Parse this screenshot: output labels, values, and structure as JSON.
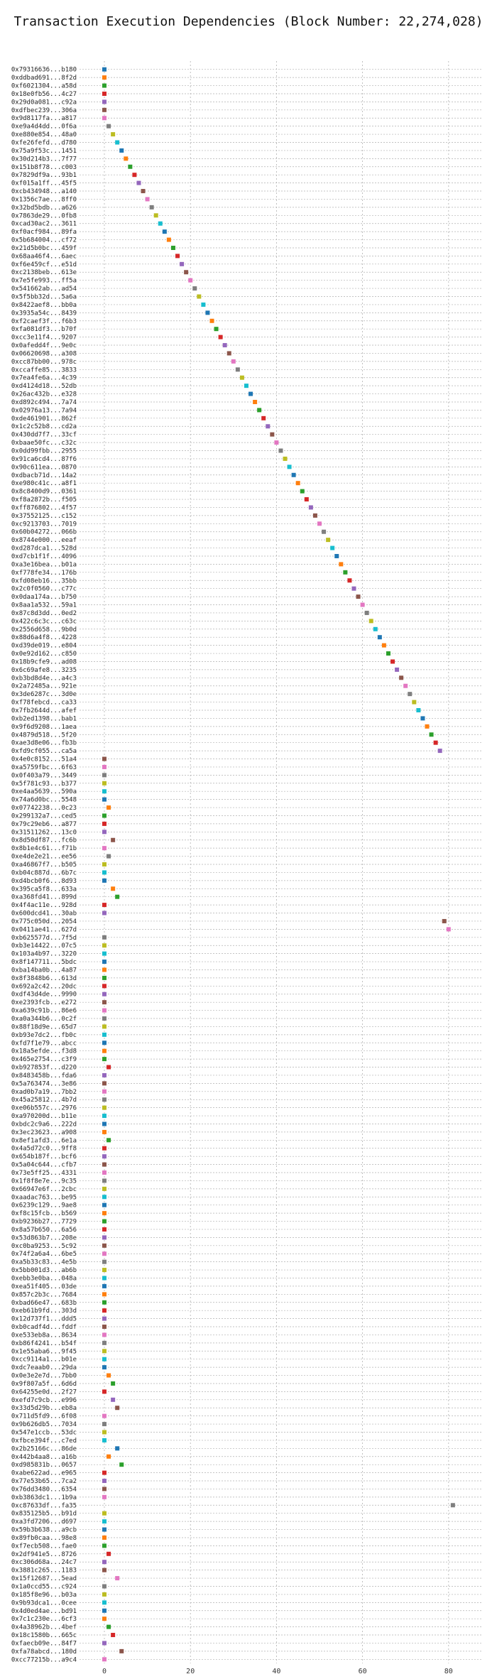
{
  "chart_data": {
    "type": "scatter",
    "title": "Transaction Execution Dependencies (Block Number: 22,274,028)",
    "xlabel": "",
    "ylabel": "",
    "xlim": [
      -3,
      86
    ],
    "xticks": [
      0,
      20,
      40,
      60,
      80
    ],
    "grid": true,
    "legend": "none",
    "colors": [
      "#1f77b4",
      "#ff7f0e",
      "#2ca02c",
      "#d62728",
      "#9467bd",
      "#8c564b",
      "#e377c2",
      "#7f7f7f",
      "#bcbd22",
      "#17becf"
    ],
    "categories": [
      "0x79316636...b180",
      "0xddbad691...8f2d",
      "0xf6021304...a58d",
      "0x18e0fb56...4c27",
      "0x29d0a081...c92a",
      "0xdfbec239...306a",
      "0x9d8117fa...a817",
      "0xe9a4d4dd...0f6a",
      "0xe880e854...48a0",
      "0xfe26fefd...d780",
      "0x75a9f53c...1451",
      "0x30d214b3...7f77",
      "0x151b8f78...c003",
      "0x7829df9a...93b1",
      "0xf015a1ff...45f5",
      "0xcb434948...a140",
      "0x1356c7ae...8ff0",
      "0x32bd5bdb...a626",
      "0x7863de29...0fb8",
      "0xcad30ac2...3611",
      "0xf0acf984...89fa",
      "0x5b684004...cf72",
      "0x21d5b0bc...459f",
      "0x68aa46f4...6aec",
      "0xf6e459cf...e51d",
      "0xc2138beb...613e",
      "0x7e5fe993...ff5a",
      "0x541662ab...ad54",
      "0x5f5bb32d...5a6a",
      "0x8422aef8...bb0a",
      "0x3935a54c...8439",
      "0xf2caef3f...f6b3",
      "0xfa081df3...b70f",
      "0xcc3e11f4...9207",
      "0x0afedd4f...9e0c",
      "0x06620698...a308",
      "0xcc87bb00...978c",
      "0xccaffe85...3833",
      "0x7ea4fe6a...4c39",
      "0xd4124d18...52db",
      "0x26ac432b...e328",
      "0xd892c494...7a74",
      "0x02976a13...7a94",
      "0xde461901...862f",
      "0x1c2c52b8...cd2a",
      "0x430dd7f7...33cf",
      "0xbaae50fc...c32c",
      "0x0dd99fbb...2955",
      "0x91ca6cd4...87f6",
      "0x90c611ea...0870",
      "0xdbacb71d...14a2",
      "0xe980c41c...a8f1",
      "0x8c8400d9...0361",
      "0xf8a2872b...f505",
      "0xff876802...4f57",
      "0x37552125...c152",
      "0xc9213703...7019",
      "0x60b04272...066b",
      "0x8744e000...eeaf",
      "0xd287dca1...528d",
      "0xd7cb1f1f...4096",
      "0xa3e16bea...b01a",
      "0xf778fe34...176b",
      "0xfd08eb16...35bb",
      "0x2c0f0560...c77c",
      "0x0daa174a...b750",
      "0x8aa1a532...59a1",
      "0x87c8d3dd...0ed2",
      "0x422c6c3c...c63c",
      "0x2556d658...9b0d",
      "0x88d6a4f8...4228",
      "0xd39de019...e804",
      "0x0e92d162...c850",
      "0x18b9cfe9...ad08",
      "0x6c69afe8...3235",
      "0xb3bd8d4e...a4c3",
      "0x2a72485a...921e",
      "0x3de6287c...3d0e",
      "0xf78febcd...ca33",
      "0x7fb2644d...afef",
      "0xb2ed1398...bab1",
      "0x9f6d9208...1aea",
      "0x4879d518...5f20",
      "0xae3d8e06...fb3b",
      "0xfd9cf055...ca5a",
      "0x4e0c8152...51a4",
      "0xa5759fbc...6f63",
      "0x0f403a79...3449",
      "0x5f781c93...b377",
      "0xe4aa5639...590a",
      "0x74a6d0bc...5548",
      "0x07742238...0c23",
      "0x299132a7...ced5",
      "0x79c29eb6...a877",
      "0x31511262...13c0",
      "0x8d50df87...fc6b",
      "0x8b1e4c61...f71b",
      "0xe4de2e21...ee56",
      "0xa46867f7...b505",
      "0xb04c887d...6b7c",
      "0xd4bcb0f6...8d93",
      "0x395ca5f8...633a",
      "0xa368fd41...899d",
      "0x4f4ac11e...928d",
      "0x600dcd41...30ab",
      "0x775c050d...2054",
      "0x0411ae41...627d",
      "0xb625577d...7f5d",
      "0xb3e14422...07c5",
      "0x103a4b97...3220",
      "0x8f147711...5bdc",
      "0xba14ba0b...4a87",
      "0x8f3848b6...613d",
      "0x692a2c42...20dc",
      "0xdf43d4de...9990",
      "0xe2393fcb...e272",
      "0xa639c91b...86e6",
      "0xa0a344b6...0c2f",
      "0x88f18d9e...65d7",
      "0xb93e7dc2...fb0c",
      "0xfd7f1e79...abcc",
      "0x18a5efde...f3d8",
      "0x465e2754...c3f9",
      "0xb927853f...d220",
      "0x8483458b...fda6",
      "0x5a763474...3e86",
      "0xad0b7a19...7bb2",
      "0x45a25812...4b7d",
      "0xe06b557c...2976",
      "0xa970200d...b11e",
      "0xbdc2c9a6...222d",
      "0x3ec23623...a908",
      "0x8ef1afd3...6e1a",
      "0x4a5d72c0...9ff8",
      "0x654b187f...bcf6",
      "0x5a04c644...cfb7",
      "0x73e5ff25...4331",
      "0x1f8f8e7e...9c35",
      "0x66947e6f...2cbc",
      "0xaadac763...be95",
      "0x6239c129...9ae8",
      "0xf8c15fcb...b569",
      "0xb9236b27...7729",
      "0x8a57b650...6a56",
      "0x53d863b7...208e",
      "0xc0ba9253...5c92",
      "0x74f2a6a4...6be5",
      "0xa5b33c83...4e5b",
      "0x5bb001d3...ab6b",
      "0xebb3e0ba...048a",
      "0xea51f405...03de",
      "0x857c2b3c...7684",
      "0xbad66e47...683b",
      "0xeb61b9fd...303d",
      "0x12d737f1...ddd5",
      "0xb0cadf4d...fddf",
      "0xe533eb8a...8634",
      "0xb86f4241...b54f",
      "0x1e55aba6...9f45",
      "0xcc9114a1...b01e",
      "0xdc7eaab0...29da",
      "0x0e3e2e7d...7bb0",
      "0x9f807a5f...6d6d",
      "0x64255e0d...2f27",
      "0xefd7c9cb...e996",
      "0x33d5d29b...eb8a",
      "0x711d5fd9...6f08",
      "0x9b626db5...7034",
      "0x547e1ccb...53dc",
      "0xfbce394f...c7ed",
      "0x2b25166c...86de",
      "0x442b4aa8...a16b",
      "0xd985831b...0657",
      "0xabe622ad...e965",
      "0x77e53b65...7ca2",
      "0x76dd3480...6354",
      "0xb3863dc1...1b9a",
      "0xc87633df...fa35",
      "0x835125b5...b91d",
      "0xa3fd7206...d697",
      "0x59b3b638...a9cb",
      "0x89fb0caa...98e8",
      "0xf7ecb508...fae0",
      "0x2df941e5...8726",
      "0xc306d68a...24c7",
      "0x3881c265...1183",
      "0x15f12687...5ead",
      "0x1a0ccd55...c924",
      "0x185f8e96...b03a",
      "0x9b93dca1...0cee",
      "0x4d0ed4ae...bd91",
      "0x7c1c230e...6cf3",
      "0x4a38962b...4bef",
      "0x18c1580b...665c",
      "0xfaecb09e...84f7",
      "0xfa78abcd...180d",
      "0xcc77215b...a9c4"
    ],
    "x": [
      0,
      0,
      0,
      0,
      0,
      0,
      0,
      1,
      2,
      3,
      4,
      5,
      6,
      7,
      8,
      9,
      10,
      11,
      12,
      13,
      14,
      15,
      16,
      17,
      18,
      19,
      20,
      21,
      22,
      23,
      24,
      25,
      26,
      27,
      28,
      29,
      30,
      31,
      32,
      33,
      34,
      35,
      36,
      37,
      38,
      39,
      40,
      41,
      42,
      43,
      44,
      45,
      46,
      47,
      48,
      49,
      50,
      51,
      52,
      53,
      54,
      55,
      56,
      57,
      58,
      59,
      60,
      61,
      62,
      63,
      64,
      65,
      66,
      67,
      68,
      69,
      70,
      71,
      72,
      73,
      74,
      75,
      76,
      77,
      78,
      0,
      0,
      0,
      0,
      0,
      0,
      1,
      0,
      0,
      0,
      2,
      0,
      1,
      0,
      0,
      0,
      2,
      3,
      0,
      0,
      79,
      80,
      0,
      0,
      0,
      0,
      0,
      0,
      0,
      0,
      0,
      0,
      0,
      0,
      0,
      0,
      0,
      0,
      1,
      0,
      0,
      0,
      0,
      0,
      0,
      0,
      0,
      1,
      0,
      0,
      0,
      0,
      0,
      0,
      0,
      0,
      0,
      0,
      0,
      0,
      0,
      0,
      0,
      0,
      0,
      0,
      0,
      0,
      0,
      0,
      0,
      0,
      0,
      0,
      0,
      0,
      1,
      2,
      0,
      2,
      3,
      0,
      0,
      0,
      0,
      3,
      1,
      4,
      0,
      0,
      0,
      0,
      81,
      0,
      0,
      0,
      0,
      0,
      1,
      0,
      0,
      3,
      0,
      0,
      0,
      0,
      0,
      1,
      2,
      0,
      4,
      0
    ]
  }
}
